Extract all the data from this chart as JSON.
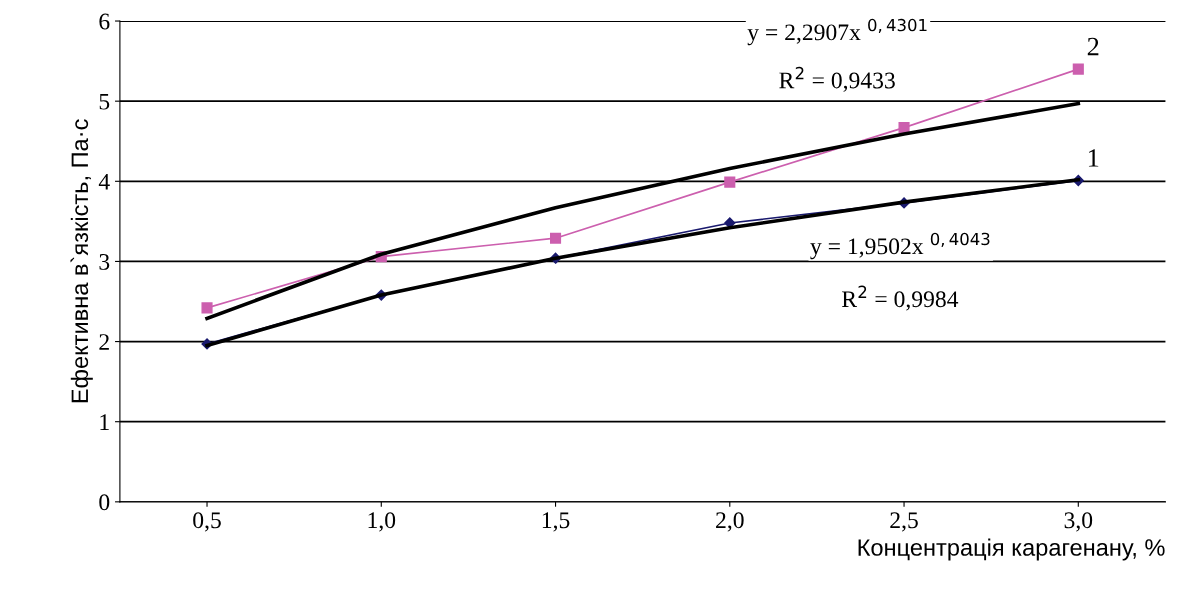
{
  "chart_data": {
    "type": "line",
    "xlabel": "Концентрація карагенану, %",
    "ylabel": "Ефективна в`язкість, Па·с",
    "categories": [
      "0,5",
      "1,0",
      "1,5",
      "2,0",
      "2,5",
      "3,0"
    ],
    "series": [
      {
        "color": "#cc5fae",
        "marker": "square",
        "values": [
          2.42,
          3.06,
          3.29,
          3.99,
          4.67,
          5.4
        ]
      },
      {
        "color": "#1a1a6e",
        "marker": "diamond",
        "values": [
          1.97,
          2.58,
          3.04,
          3.48,
          3.73,
          4.01
        ]
      },
      {
        "color": "#000000",
        "marker": "none",
        "values": [
          2.29,
          3.09,
          3.67,
          4.16,
          4.59,
          4.97
        ]
      },
      {
        "color": "#000000",
        "marker": "none",
        "values": [
          1.95,
          2.58,
          3.04,
          3.42,
          3.74,
          4.02
        ]
      }
    ],
    "ylim": [
      0,
      6
    ],
    "yticks": [
      0,
      1,
      2,
      3,
      4,
      5,
      6
    ],
    "grid": "y",
    "legend": false,
    "line_style": "solid",
    "annotations": [
      "y = 2,2907x $^{0,4301}$",
      "R$^{2}$ = 0,9433",
      "y = 1,9502x $^{0,4043}$",
      "R$^{2}$ = 0,9984",
      {
        "text": "2",
        "x": "3,0",
        "y": 5.4
      },
      {
        "text": "1",
        "x": "3,0",
        "y": 4.01
      }
    ]
  }
}
